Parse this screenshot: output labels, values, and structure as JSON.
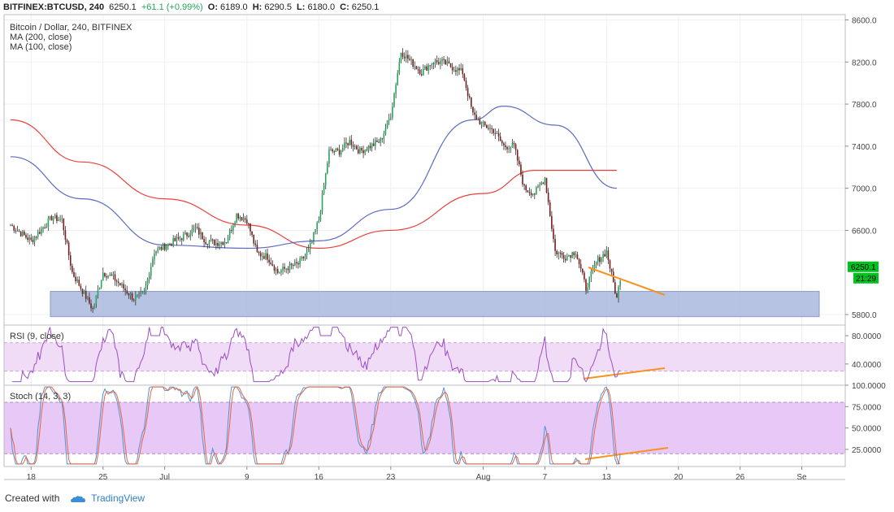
{
  "header": {
    "symbol": "BITFINEX:BTCUSD, 240",
    "last": "6250.1",
    "change": "+61.1 (+0.99%)",
    "o_label": "O:",
    "o": "6189.0",
    "h_label": "H:",
    "h": "6290.5",
    "l_label": "L:",
    "l": "6180.0",
    "c_label": "C:",
    "c": "6250.1"
  },
  "legend": {
    "title": "Bitcoin / Dollar, 240, BITFINEX",
    "ma200": "MA (200, close)",
    "ma100": "MA (100, close)",
    "rsi": "RSI (9, close)",
    "stoch": "Stoch (14, 3, 3)"
  },
  "price_tag": {
    "value": "6250.1",
    "countdown": "21:29"
  },
  "footer": {
    "created_with": "Created with",
    "brand": "TradingView"
  },
  "colors": {
    "up": "#26a65b",
    "down": "#7a1d1d",
    "ma200": "#e8413c",
    "ma100": "#5b6bbf",
    "support_zone": "#a9b8dd",
    "trendline": "#f7931e",
    "rsi_line": "#9b4fc1",
    "rsi_band": "#f1dcf7",
    "stoch_k": "#4f94d4",
    "stoch_d": "#e8633c",
    "stoch_band": "#e7c8f7",
    "last_price": "#00c21e"
  },
  "chart_data": [
    {
      "type": "candlestick",
      "title": "Bitcoin / Dollar, 240, BITFINEX",
      "ylim": [
        5700,
        8650
      ],
      "y_ticks": [
        "8600.0",
        "8200.0",
        "7800.0",
        "7400.0",
        "7000.0",
        "6600.0",
        "5800.0"
      ],
      "x_ticks": [
        "18",
        "25",
        "Jul",
        "9",
        "16",
        "23",
        "Aug",
        "7",
        "13",
        "20",
        "26",
        "Se"
      ],
      "close_path": [
        {
          "d": "Jun 16",
          "c": 6650
        },
        {
          "d": "Jun 18",
          "c": 6500
        },
        {
          "d": "Jun 20",
          "c": 6720
        },
        {
          "d": "Jun 21",
          "c": 6700
        },
        {
          "d": "Jun 22",
          "c": 6200
        },
        {
          "d": "Jun 24",
          "c": 5850
        },
        {
          "d": "Jun 25",
          "c": 6200
        },
        {
          "d": "Jun 26",
          "c": 6150
        },
        {
          "d": "Jun 27",
          "c": 6050
        },
        {
          "d": "Jun 28",
          "c": 5950
        },
        {
          "d": "Jun 29",
          "c": 6000
        },
        {
          "d": "Jun 30",
          "c": 6400
        },
        {
          "d": "Jul 3",
          "c": 6550
        },
        {
          "d": "Jul 4",
          "c": 6620
        },
        {
          "d": "Jul 5",
          "c": 6500
        },
        {
          "d": "Jul 6",
          "c": 6480
        },
        {
          "d": "Jul 7",
          "c": 6500
        },
        {
          "d": "Jul 8",
          "c": 6750
        },
        {
          "d": "Jul 9",
          "c": 6700
        },
        {
          "d": "Jul 10",
          "c": 6380
        },
        {
          "d": "Jul 11",
          "c": 6350
        },
        {
          "d": "Jul 12",
          "c": 6200
        },
        {
          "d": "Jul 13",
          "c": 6250
        },
        {
          "d": "Jul 14",
          "c": 6280
        },
        {
          "d": "Jul 15",
          "c": 6400
        },
        {
          "d": "Jul 16",
          "c": 6700
        },
        {
          "d": "Jul 17",
          "c": 7350
        },
        {
          "d": "Jul 18",
          "c": 7350
        },
        {
          "d": "Jul 19",
          "c": 7450
        },
        {
          "d": "Jul 20",
          "c": 7350
        },
        {
          "d": "Jul 21",
          "c": 7400
        },
        {
          "d": "Jul 22",
          "c": 7450
        },
        {
          "d": "Jul 23",
          "c": 7700
        },
        {
          "d": "Jul 24",
          "c": 8300
        },
        {
          "d": "Jul 25",
          "c": 8200
        },
        {
          "d": "Jul 26",
          "c": 8100
        },
        {
          "d": "Jul 27",
          "c": 8200
        },
        {
          "d": "Jul 28",
          "c": 8200
        },
        {
          "d": "Jul 29",
          "c": 8150
        },
        {
          "d": "Jul 30",
          "c": 8100
        },
        {
          "d": "Jul 31",
          "c": 7700
        },
        {
          "d": "Aug 1",
          "c": 7600
        },
        {
          "d": "Aug 2",
          "c": 7550
        },
        {
          "d": "Aug 3",
          "c": 7400
        },
        {
          "d": "Aug 4",
          "c": 7400
        },
        {
          "d": "Aug 5",
          "c": 7000
        },
        {
          "d": "Aug 6",
          "c": 6950
        },
        {
          "d": "Aug 7",
          "c": 7100
        },
        {
          "d": "Aug 8",
          "c": 6400
        },
        {
          "d": "Aug 9",
          "c": 6350
        },
        {
          "d": "Aug 10",
          "c": 6400
        },
        {
          "d": "Aug 11",
          "c": 6050
        },
        {
          "d": "Aug 12",
          "c": 6300
        },
        {
          "d": "Aug 13",
          "c": 6400
        },
        {
          "d": "Aug 14",
          "c": 5950
        },
        {
          "d": "Aug 14b",
          "c": 6250
        }
      ],
      "series": [
        {
          "name": "MA (200, close)",
          "values": [
            {
              "d": "Jun 16",
              "v": 7650
            },
            {
              "d": "Jun 23",
              "v": 7250
            },
            {
              "d": "Jul 1",
              "v": 6900
            },
            {
              "d": "Jul 9",
              "v": 6650
            },
            {
              "d": "Jul 16",
              "v": 6430
            },
            {
              "d": "Jul 23",
              "v": 6600
            },
            {
              "d": "Aug 1",
              "v": 6950
            },
            {
              "d": "Aug 6",
              "v": 7170
            },
            {
              "d": "Aug 14",
              "v": 7170
            }
          ]
        },
        {
          "name": "MA (100, close)",
          "values": [
            {
              "d": "Jun 16",
              "v": 7300
            },
            {
              "d": "Jun 23",
              "v": 6900
            },
            {
              "d": "Jul 1",
              "v": 6460
            },
            {
              "d": "Jul 9",
              "v": 6430
            },
            {
              "d": "Jul 16",
              "v": 6500
            },
            {
              "d": "Jul 23",
              "v": 6800
            },
            {
              "d": "Jul 31",
              "v": 7650
            },
            {
              "d": "Aug 3",
              "v": 7780
            },
            {
              "d": "Aug 8",
              "v": 7600
            },
            {
              "d": "Aug 14",
              "v": 7000
            }
          ]
        }
      ],
      "support_zone": [
        5780,
        6020
      ],
      "last_price": 6250.1
    },
    {
      "type": "line",
      "title": "RSI (9, close)",
      "ylim": [
        10,
        95
      ],
      "y_ticks": [
        "80.0000",
        "40.0000"
      ],
      "band": [
        30,
        70
      ]
    },
    {
      "type": "line",
      "title": "Stoch (14, 3, 3)",
      "ylim": [
        5,
        100
      ],
      "y_ticks": [
        "100.0000",
        "75.0000",
        "50.0000",
        "25.0000"
      ],
      "band": [
        20,
        80
      ]
    }
  ]
}
